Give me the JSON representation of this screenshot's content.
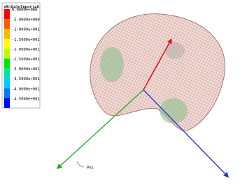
{
  "legend": {
    "title": "dB(GainInput)+0",
    "entries": [
      {
        "label": "0.0000e+000",
        "color": "#ff0000"
      },
      {
        "label": "-5.0000e+000",
        "color": "#ff5a00"
      },
      {
        "label": "-1.0000e+001",
        "color": "#ffb400"
      },
      {
        "label": "-1.5000e+001",
        "color": "#ffff00"
      },
      {
        "label": "-2.0000e+001",
        "color": "#b4ff00"
      },
      {
        "label": "-2.5000e+001",
        "color": "#00e600"
      },
      {
        "label": "-3.0000e+001",
        "color": "#00e6a0"
      },
      {
        "label": "-3.5000e+001",
        "color": "#00c8ff"
      },
      {
        "label": "-4.0000e+001",
        "color": "#0078ff"
      },
      {
        "label": "-4.5000e+001",
        "color": "#0000ff"
      }
    ]
  },
  "axis_labels": {
    "phi": "Phi"
  }
}
